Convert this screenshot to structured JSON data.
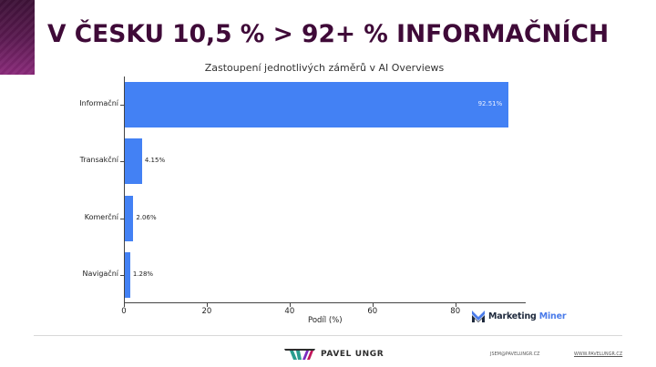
{
  "slide": {
    "title": "V ČESKU 10,5 % > 92+ % INFORMAČNÍCH"
  },
  "chart_data": {
    "type": "bar",
    "orientation": "horizontal",
    "title": "Zastoupení jednotlivých záměrů v AI Overviews",
    "xlabel": "Podíl (%)",
    "ylabel": "",
    "categories": [
      "Informační",
      "Transakční",
      "Komerční",
      "Navigační"
    ],
    "values": [
      92.51,
      4.15,
      2.06,
      1.28
    ],
    "value_labels": [
      "92.51%",
      "4.15%",
      "2.06%",
      "1.28%"
    ],
    "xlim": [
      0,
      97
    ],
    "xticks": [
      0,
      20,
      40,
      60,
      80
    ],
    "xtick_labels": [
      "0",
      "20",
      "40",
      "60",
      "80"
    ],
    "bar_color": "#4381f4",
    "grid": false,
    "legend": null
  },
  "branding": {
    "chart_logo": {
      "part1": "Marketing",
      "part2": "Miner"
    },
    "footer_logo": "PAVEL UNGR",
    "email": "JSEM@PAVELUNGR.CZ",
    "website": "WWW.PAVELUNGR.CZ"
  },
  "colors": {
    "title": "#3f0a38",
    "accent_deco": "#5a1a50",
    "bar": "#4381f4"
  }
}
